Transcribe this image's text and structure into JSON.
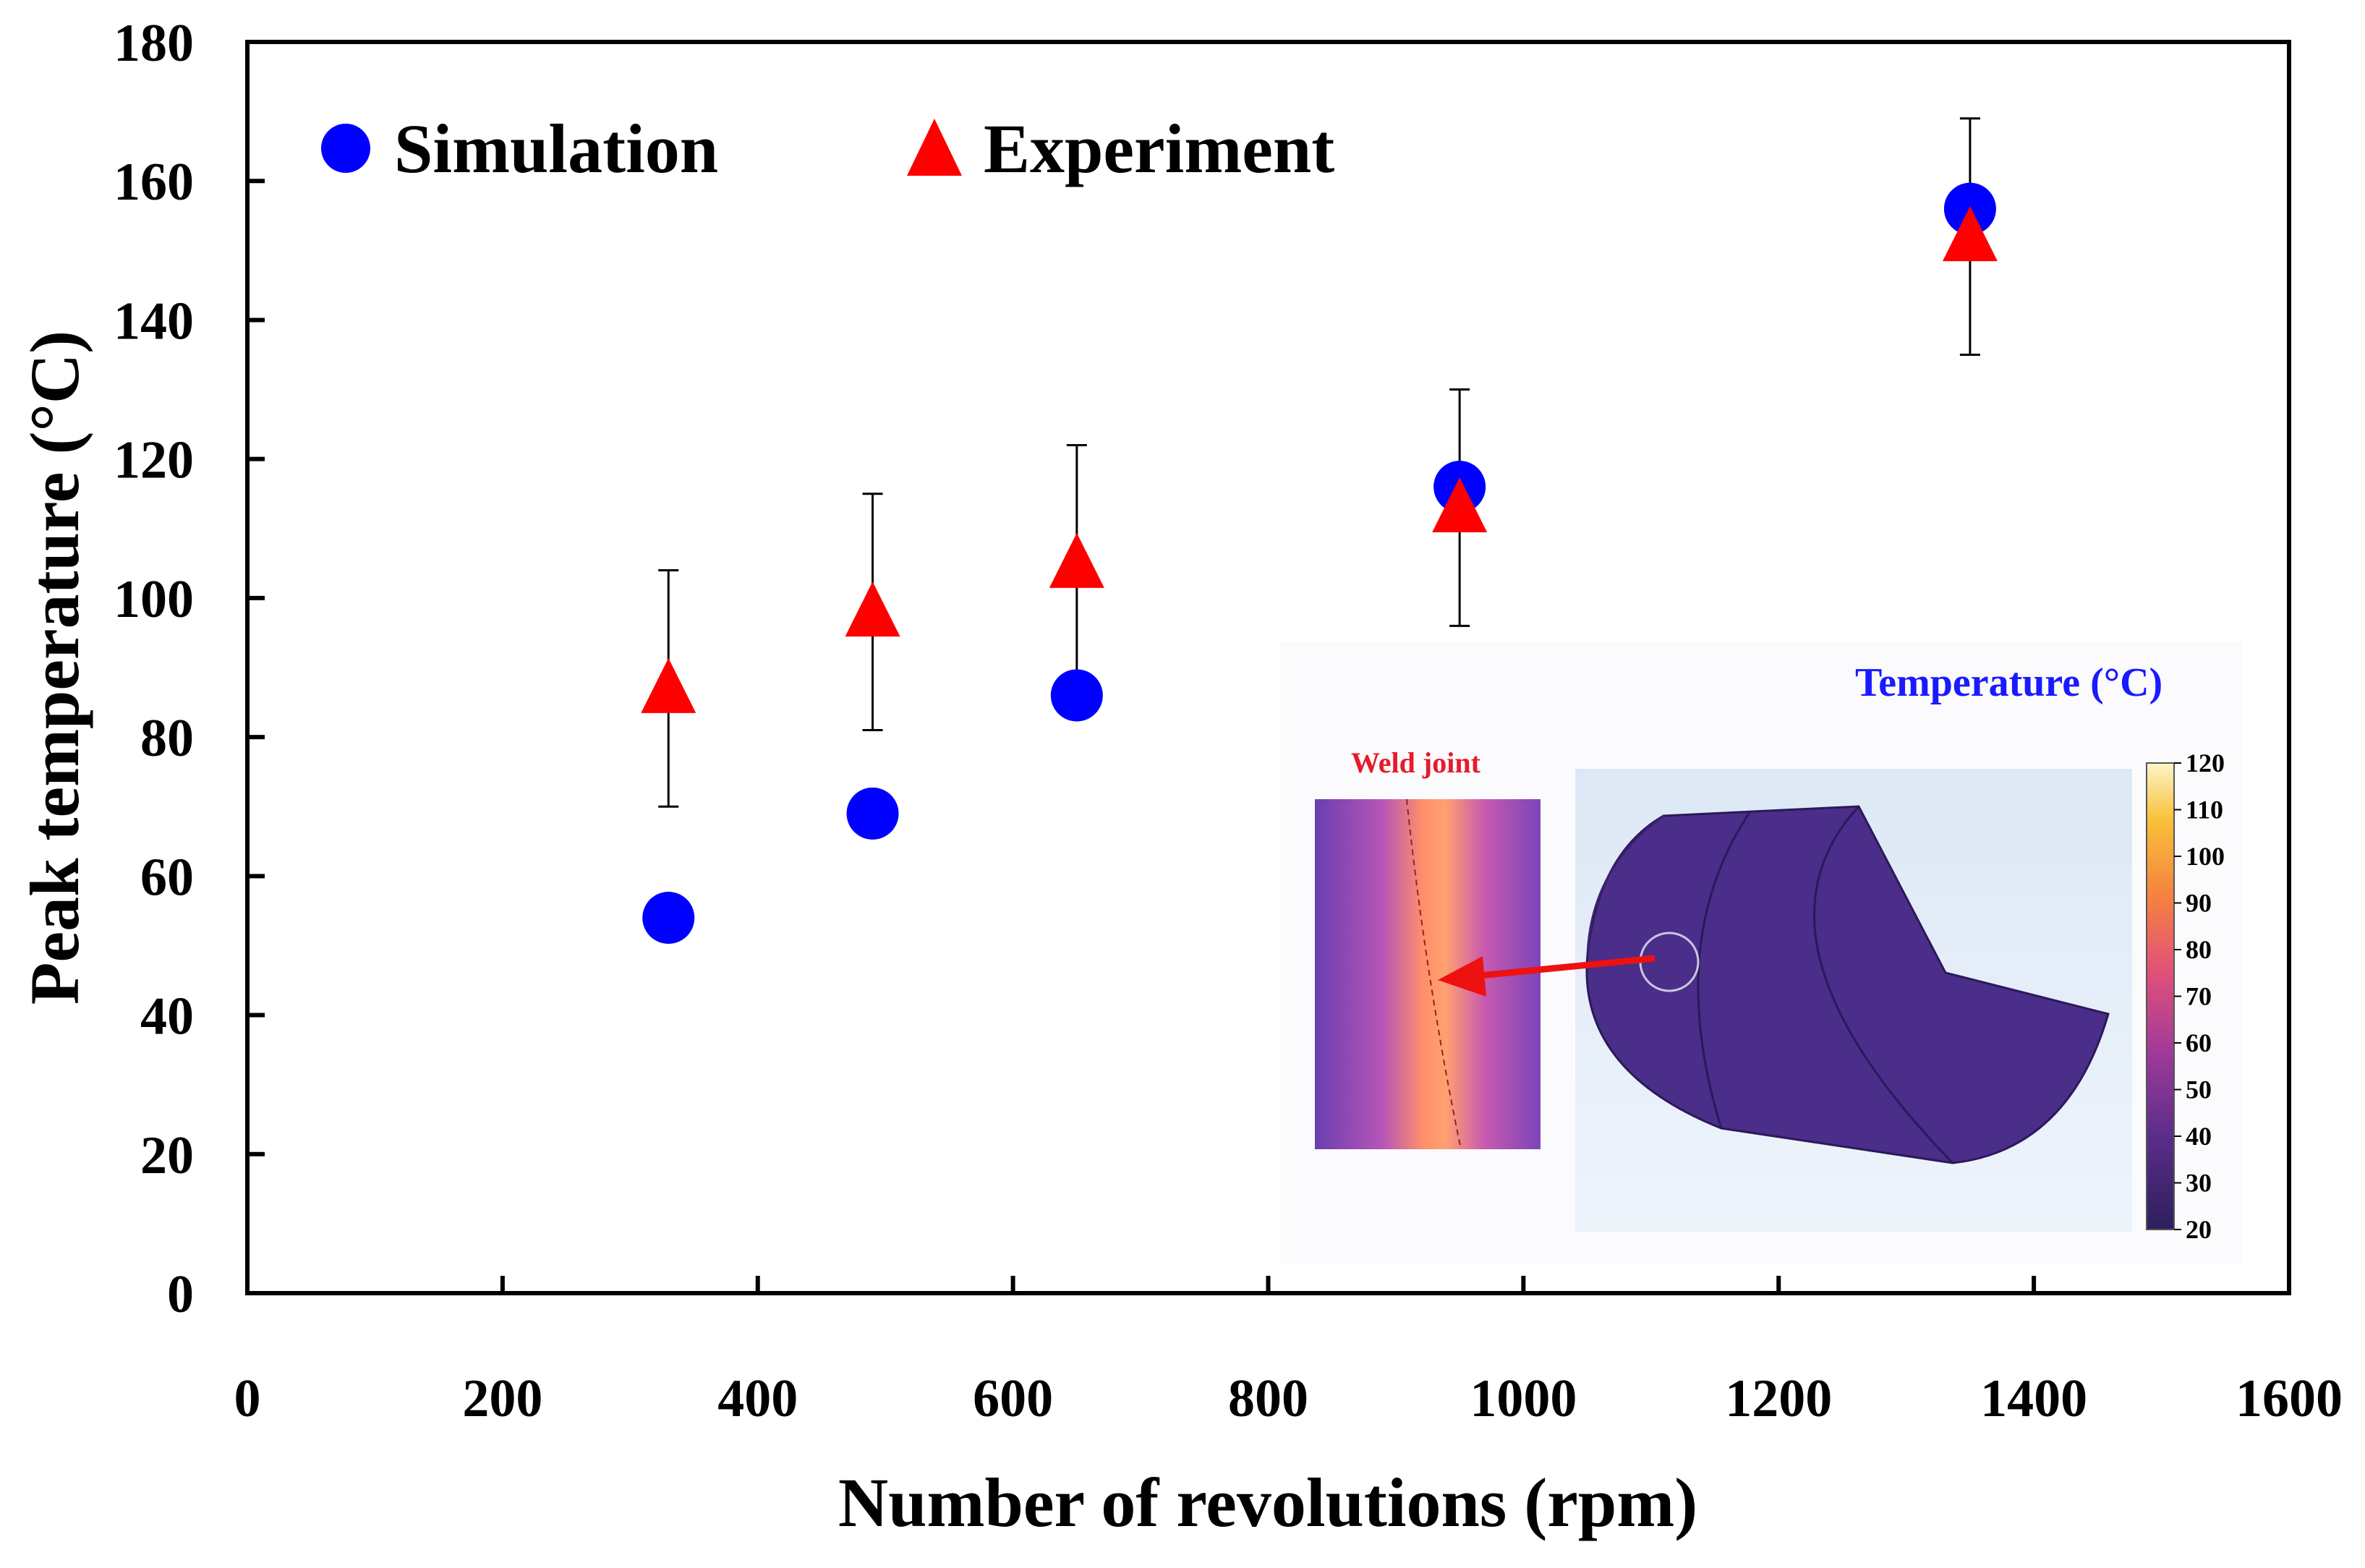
{
  "chart_data": {
    "type": "scatter",
    "xlabel": "Number of revolutions (rpm)",
    "ylabel": "Peak temperature (°C)",
    "xlim": [
      0,
      1600
    ],
    "ylim": [
      0,
      180
    ],
    "xticks": [
      0,
      200,
      400,
      600,
      800,
      1000,
      1200,
      1400,
      1600
    ],
    "yticks": [
      0,
      20,
      40,
      60,
      80,
      100,
      120,
      140,
      160,
      180
    ],
    "legend_position": "top-left",
    "series": [
      {
        "name": "Simulation",
        "marker": "circle",
        "color": "#0000ff",
        "x": [
          330,
          490,
          650,
          950,
          1350
        ],
        "y": [
          54,
          69,
          86,
          116,
          156
        ]
      },
      {
        "name": "Experiment",
        "marker": "triangle",
        "color": "#ff0000",
        "x": [
          330,
          490,
          650,
          950,
          1350
        ],
        "y": [
          87,
          98,
          105,
          113,
          152
        ],
        "error_low": [
          70,
          81,
          88,
          96,
          135
        ],
        "error_high": [
          104,
          115,
          122,
          130,
          169
        ]
      }
    ]
  },
  "inset": {
    "title": "Temperature (°C)",
    "title_color": "#1a1aff",
    "weld_label": "Weld joint",
    "weld_label_color": "#e8192c",
    "colorbar_ticks": [
      20,
      30,
      40,
      50,
      60,
      70,
      80,
      90,
      100,
      110,
      120
    ],
    "colorbar_range": [
      20,
      120
    ]
  }
}
